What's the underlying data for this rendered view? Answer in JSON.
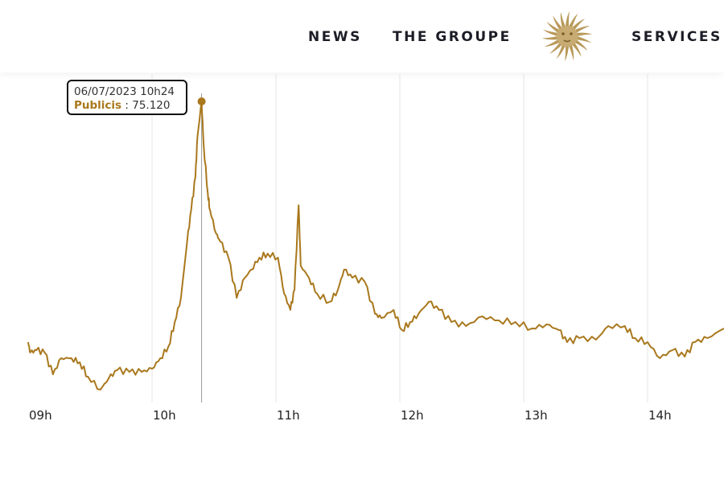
{
  "header": {
    "nav": [
      {
        "label": "NEWS"
      },
      {
        "label": "THE GROUPE"
      },
      {
        "label": "SERVICES"
      }
    ],
    "logo": "publicis-lion-logo"
  },
  "tooltip": {
    "date": "06/07/2023 10h24",
    "series": "Publicis",
    "value": ": 75.120"
  },
  "colors": {
    "line": "#a9781d",
    "grid": "#e6e6e6",
    "logo": "#b99a5a"
  },
  "chart_data": {
    "type": "line",
    "title": "",
    "xlabel": "",
    "ylabel": "",
    "grid": "vertical",
    "x_ticks": [
      "09h",
      "10h",
      "11h",
      "12h",
      "13h",
      "14h"
    ],
    "series": [
      {
        "name": "Publicis",
        "points": [
          [
            "09:00",
            72.13
          ],
          [
            "09:01",
            72.0
          ],
          [
            "09:04",
            72.03
          ],
          [
            "09:08",
            72.0
          ],
          [
            "09:12",
            71.73
          ],
          [
            "09:16",
            71.93
          ],
          [
            "09:21",
            71.93
          ],
          [
            "09:25",
            71.88
          ],
          [
            "09:29",
            71.7
          ],
          [
            "09:35",
            71.54
          ],
          [
            "09:39",
            71.68
          ],
          [
            "09:43",
            71.78
          ],
          [
            "09:49",
            71.76
          ],
          [
            "09:55",
            71.76
          ],
          [
            "10:00",
            71.8
          ],
          [
            "10:04",
            71.93
          ],
          [
            "10:08",
            72.08
          ],
          [
            "10:11",
            72.38
          ],
          [
            "10:14",
            72.68
          ],
          [
            "10:17",
            73.38
          ],
          [
            "10:19",
            73.78
          ],
          [
            "10:21",
            74.18
          ],
          [
            "10:22",
            74.68
          ],
          [
            "10:24",
            75.12
          ],
          [
            "10:25",
            74.58
          ],
          [
            "10:27",
            73.98
          ],
          [
            "10:28",
            73.78
          ],
          [
            "10:31",
            73.48
          ],
          [
            "10:33",
            73.38
          ],
          [
            "10:37",
            73.18
          ],
          [
            "10:41",
            72.68
          ],
          [
            "10:45",
            72.93
          ],
          [
            "10:48",
            73.03
          ],
          [
            "10:52",
            73.18
          ],
          [
            "10:56",
            73.23
          ],
          [
            "11:01",
            73.18
          ],
          [
            "11:04",
            72.73
          ],
          [
            "11:07",
            72.53
          ],
          [
            "11:09",
            72.78
          ],
          [
            "11:11",
            73.83
          ],
          [
            "11:12",
            73.08
          ],
          [
            "11:16",
            72.93
          ],
          [
            "11:20",
            72.73
          ],
          [
            "11:26",
            72.63
          ],
          [
            "11:30",
            72.78
          ],
          [
            "11:33",
            73.03
          ],
          [
            "11:37",
            72.93
          ],
          [
            "11:43",
            72.88
          ],
          [
            "11:48",
            72.48
          ],
          [
            "11:51",
            72.43
          ],
          [
            "11:57",
            72.53
          ],
          [
            "12:01",
            72.28
          ],
          [
            "12:05",
            72.38
          ],
          [
            "12:09",
            72.48
          ],
          [
            "12:14",
            72.63
          ],
          [
            "12:19",
            72.53
          ],
          [
            "12:25",
            72.38
          ],
          [
            "12:32",
            72.33
          ],
          [
            "12:40",
            72.45
          ],
          [
            "12:48",
            72.4
          ],
          [
            "12:56",
            72.38
          ],
          [
            "13:04",
            72.3
          ],
          [
            "13:11",
            72.35
          ],
          [
            "13:17",
            72.28
          ],
          [
            "13:21",
            72.13
          ],
          [
            "13:27",
            72.18
          ],
          [
            "13:35",
            72.16
          ],
          [
            "13:41",
            72.33
          ],
          [
            "13:49",
            72.33
          ],
          [
            "13:54",
            72.18
          ],
          [
            "14:00",
            72.13
          ],
          [
            "14:06",
            71.93
          ],
          [
            "14:12",
            72.03
          ],
          [
            "14:18",
            71.95
          ],
          [
            "14:23",
            72.13
          ],
          [
            "14:29",
            72.18
          ],
          [
            "14:37",
            72.3
          ]
        ]
      }
    ],
    "highlight": {
      "time": "10:24",
      "value": 75.12
    }
  }
}
